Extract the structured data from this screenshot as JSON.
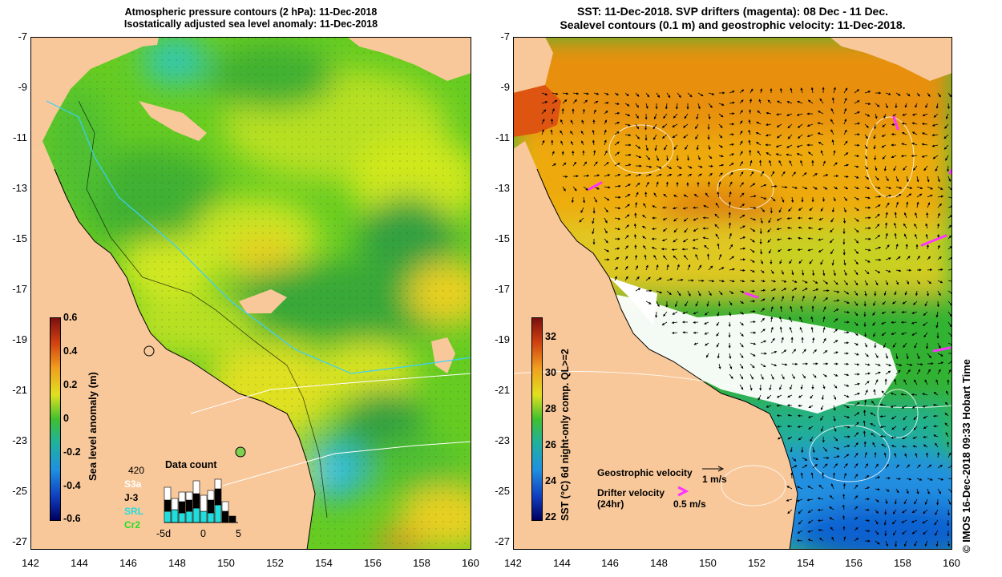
{
  "left_panel": {
    "title_line1": "Atmospheric pressure contours (2 hPa): 11-Dec-2018",
    "title_line2": "Isostatically adjusted sea level anomaly: 11-Dec-2018",
    "colorbar_label": "Sea level anomaly (m)",
    "colorbar_ticks": [
      "0.6",
      "0.4",
      "0.2",
      "0",
      "-0.2",
      "-0.4",
      "-0.6"
    ],
    "data_count": {
      "title": "Data count",
      "max_label": "420",
      "satellites": [
        {
          "name": "S3a",
          "color": "#ffffff"
        },
        {
          "name": "J-3",
          "color": "#000000"
        },
        {
          "name": "SRL",
          "color": "#22dddd"
        },
        {
          "name": "Cr2",
          "color": "#22dd22"
        }
      ],
      "x_labels": [
        "-5d",
        "0",
        "5"
      ]
    }
  },
  "right_panel": {
    "title_line1": "SST: 11-Dec-2018. SVP drifters (magenta): 08 Dec - 11 Dec.",
    "title_line2": "Sealevel contours (0.1 m) and geostrophic velocity: 11-Dec-2018.",
    "colorbar_label": "SST (°C) 6d night-only comp. QL>=2",
    "colorbar_ticks": [
      "32",
      "30",
      "28",
      "26",
      "24",
      "22"
    ],
    "legend": {
      "geo_label": "Geostrophic velocity",
      "geo_scale": "1 m/s",
      "drifter_label_1": "Drifter velocity",
      "drifter_label_2": "(24hr)",
      "drifter_scale": "0.5 m/s"
    }
  },
  "axes": {
    "y_ticks": [
      "-7",
      "-9",
      "-11",
      "-13",
      "-15",
      "-17",
      "-19",
      "-21",
      "-23",
      "-25",
      "-27"
    ],
    "x_ticks": [
      "142",
      "144",
      "146",
      "148",
      "150",
      "152",
      "154",
      "156",
      "158",
      "160"
    ]
  },
  "credit": "© IMOS 16-Dec-2018 09:33 Hobart Time",
  "colors": {
    "land": "#f9c89a",
    "magenta": "#ff33ff"
  }
}
